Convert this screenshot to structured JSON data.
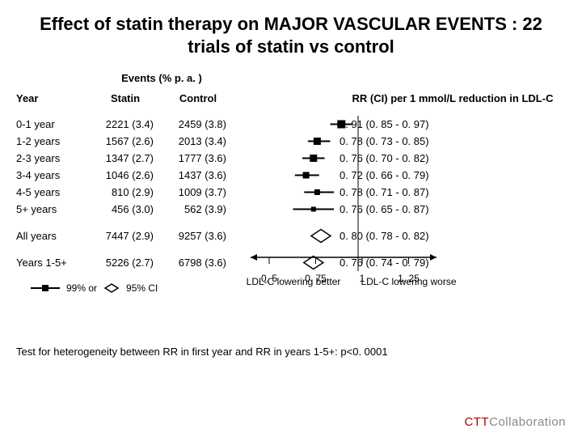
{
  "title": "Effect of statin therapy on MAJOR VASCULAR EVENTS : 22 trials of statin vs control",
  "headers": {
    "year": "Year",
    "events_top": "Events (% p. a. )",
    "statin": "Statin",
    "control": "Control",
    "rr": "RR (CI) per 1 mmol/L reduction in LDL-C"
  },
  "rows": [
    {
      "year": "0-1 year",
      "statin": "2221 (3.4)",
      "control": "2459 (3.8)",
      "rr_text": "0. 91 (0. 85 - 0. 97)",
      "pt": 0.91,
      "lo": 0.85,
      "hi": 0.97,
      "sz": 10
    },
    {
      "year": "1-2 years",
      "statin": "1567 (2.6)",
      "control": "2013 (3.4)",
      "rr_text": "0. 78 (0. 73 - 0. 85)",
      "pt": 0.78,
      "lo": 0.73,
      "hi": 0.85,
      "sz": 9
    },
    {
      "year": "2-3 years",
      "statin": "1347 (2.7)",
      "control": "1777 (3.6)",
      "rr_text": "0. 76 (0. 70 - 0. 82)",
      "pt": 0.76,
      "lo": 0.7,
      "hi": 0.82,
      "sz": 9
    },
    {
      "year": "3-4 years",
      "statin": "1046 (2.6)",
      "control": "1437 (3.6)",
      "rr_text": "0. 72 (0. 66 - 0. 79)",
      "pt": 0.72,
      "lo": 0.66,
      "hi": 0.79,
      "sz": 8
    },
    {
      "year": "4-5 years",
      "statin": "810 (2.9)",
      "control": "1009 (3.7)",
      "rr_text": "0. 78 (0. 71 - 0. 87)",
      "pt": 0.78,
      "lo": 0.71,
      "hi": 0.87,
      "sz": 7
    },
    {
      "year": "5+ years",
      "statin": "456 (3.0)",
      "control": "562 (3.9)",
      "rr_text": "0. 76 (0. 65 - 0. 87)",
      "pt": 0.76,
      "lo": 0.65,
      "hi": 0.87,
      "sz": 6
    }
  ],
  "summary": [
    {
      "year": "All years",
      "statin": "7447 (2.9)",
      "control": "9257 (3.6)",
      "rr_text": "0. 80 (0. 78 - 0. 82)",
      "pt": 0.8,
      "diamond": true,
      "dw": 12
    },
    {
      "year": "Years 1-5+",
      "statin": "5226 (2.7)",
      "control": "6798 (3.6)",
      "rr_text": "0. 76 (0. 74 - 0. 79)",
      "pt": 0.76,
      "diamond": true,
      "dw": 12
    }
  ],
  "legend": {
    "ci99": "99% or",
    "ci95": "95% CI"
  },
  "axis": {
    "ticks": [
      0.5,
      0.75,
      1,
      1.25
    ],
    "domain": [
      0.4,
      1.4
    ],
    "left_label": "LDL-C lowering better",
    "right_label": "LDL-C lowering worse"
  },
  "hetero": "Test for heterogeneity between RR in first year and RR in years 1-5+: p<0. 0001",
  "branding": {
    "pre": "CTT",
    "word": "Collaboration"
  },
  "forest_style": {
    "line_color": "#000000",
    "square_fill": "#000000",
    "diamond_stroke": "#000000",
    "diamond_fill": "#ffffff",
    "axis_color": "#000000",
    "ref_line_at": 1.0
  }
}
